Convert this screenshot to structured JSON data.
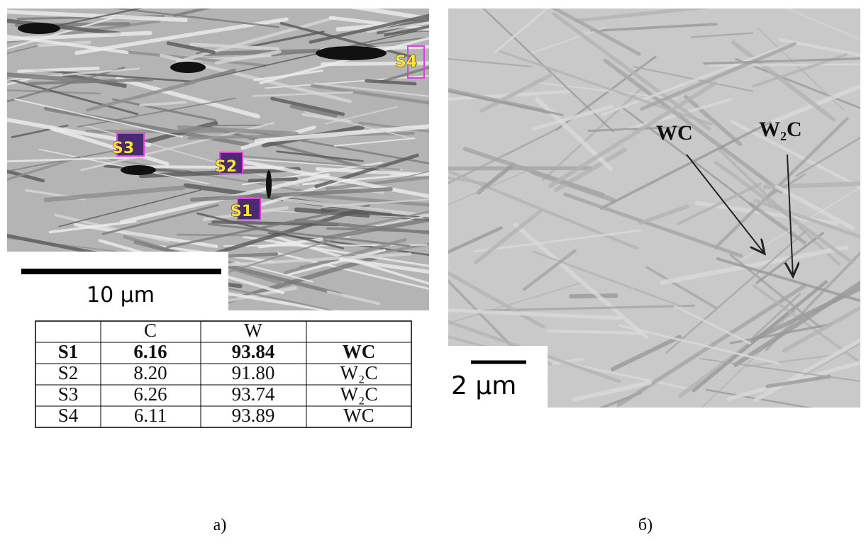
{
  "panel_a": {
    "labels": [
      "S4",
      "S3",
      "S2",
      "S1"
    ],
    "scale_bar": "10 μm",
    "caption": "а)"
  },
  "table": {
    "header": [
      "C",
      "W"
    ],
    "rows": [
      [
        "S1",
        "6.16",
        "93.84",
        "WC"
      ],
      [
        "S2",
        "8.20",
        "91.80",
        "W₂C"
      ],
      [
        "S3",
        "6.26",
        "93.74",
        "W₂C"
      ],
      [
        "S4",
        "6.11",
        "93.89",
        "WC"
      ]
    ]
  },
  "panel_b": {
    "annotations": [
      "WC",
      "W₂C"
    ],
    "scale_bar": "2 μm",
    "caption": "б)"
  }
}
